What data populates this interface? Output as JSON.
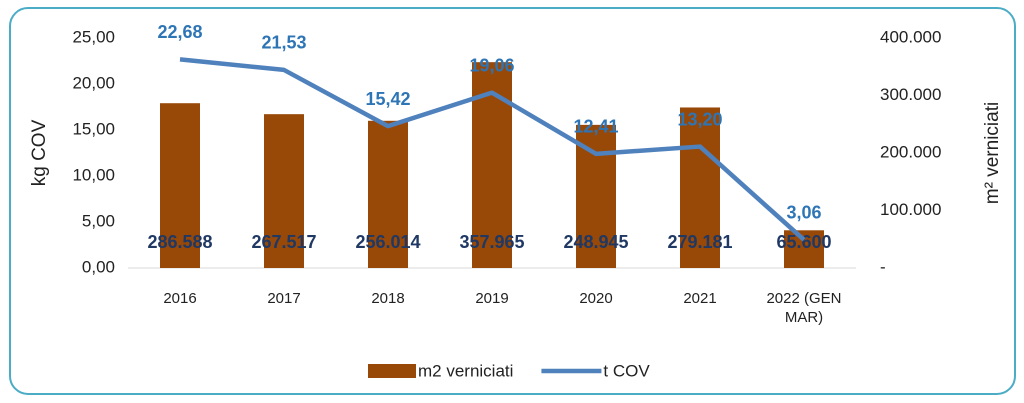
{
  "chart_data": {
    "type": "bar-line",
    "y_label": "kg COV",
    "y2_label": "m² verniciati",
    "categories": [
      "2016",
      "2017",
      "2018",
      "2019",
      "2020",
      "2021",
      "2022 (GEN MAR)"
    ],
    "series": [
      {
        "name": "m2 verniciati",
        "type": "bar",
        "axis": "y2",
        "color": "#984807",
        "values": [
          286588,
          267517,
          256014,
          357965,
          248945,
          279181,
          65600
        ],
        "value_labels": [
          "286.588",
          "267.517",
          "256.014",
          "357.965",
          "248.945",
          "279.181",
          "65.600"
        ]
      },
      {
        "name": "t COV",
        "type": "line",
        "axis": "y",
        "color": "#4f81bd",
        "values": [
          22.68,
          21.53,
          15.42,
          19.06,
          12.41,
          13.2,
          3.06
        ],
        "value_labels": [
          "22,68",
          "21,53",
          "15,42",
          "19,06",
          "12,41",
          "13,20",
          "3,06"
        ]
      }
    ],
    "ylim": [
      0,
      25
    ],
    "yticks": [
      {
        "value": 0,
        "label": "0,00"
      },
      {
        "value": 5,
        "label": "5,00"
      },
      {
        "value": 10,
        "label": "10,00"
      },
      {
        "value": 15,
        "label": "15,00"
      },
      {
        "value": 20,
        "label": "20,00"
      },
      {
        "value": 25,
        "label": "25,00"
      }
    ],
    "y2lim": [
      0,
      400000
    ],
    "y2ticks": [
      {
        "value": 0,
        "label": "-"
      },
      {
        "value": 100000,
        "label": "100.000"
      },
      {
        "value": 200000,
        "label": "200.000"
      },
      {
        "value": 300000,
        "label": "300.000"
      },
      {
        "value": 400000,
        "label": "400.000"
      }
    ],
    "grid": false,
    "legend": "bottom"
  }
}
